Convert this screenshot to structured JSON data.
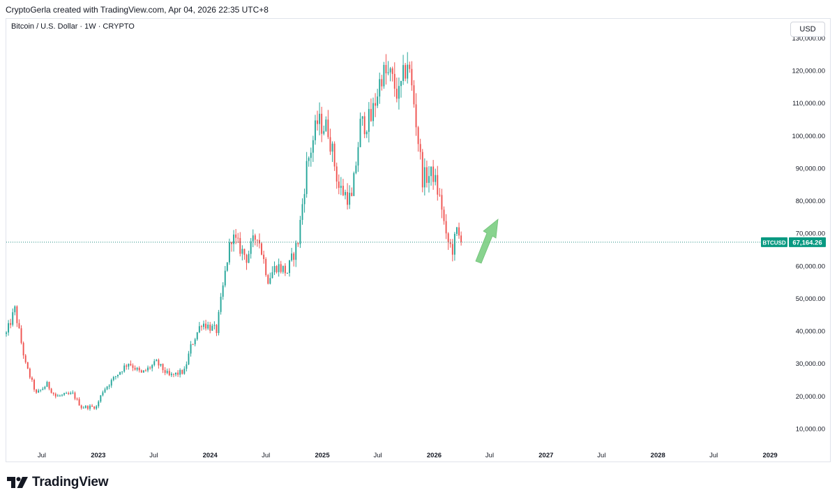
{
  "header": {
    "text": "CryptoGerla created with TradingView.com, Apr 04, 2026 22:35 UTC+8"
  },
  "symbol_title": "Bitcoin / U.S. Dollar · 1W · CRYPTO",
  "currency_button": "USD",
  "footer": {
    "brand": "TradingView"
  },
  "colors": {
    "up": "#26a69a",
    "down": "#ef5350",
    "arrow": "#7ccf82",
    "price_line": "#1d8e80",
    "price_label_bg": "#089981"
  },
  "chart_data": {
    "type": "candlestick",
    "symbol": "BTCUSD",
    "interval": "1W",
    "last_price": 67164.26,
    "last_price_label": "67,164.26",
    "symbol_label": "BTCUSD",
    "y_ticks": [
      {
        "value": 130000,
        "label": "130,000.00"
      },
      {
        "value": 120000,
        "label": "120,000.00"
      },
      {
        "value": 110000,
        "label": "110,000.00"
      },
      {
        "value": 100000,
        "label": "100,000.00"
      },
      {
        "value": 90000,
        "label": "90,000.00"
      },
      {
        "value": 80000,
        "label": "80,000.00"
      },
      {
        "value": 70000,
        "label": "70,000.00"
      },
      {
        "value": 60000,
        "label": "60,000.00"
      },
      {
        "value": 50000,
        "label": "50,000.00"
      },
      {
        "value": 40000,
        "label": "40,000.00"
      },
      {
        "value": 30000,
        "label": "30,000.00"
      },
      {
        "value": 20000,
        "label": "20,000.00"
      },
      {
        "value": 10000,
        "label": "10,000.00"
      }
    ],
    "x_ticks": [
      {
        "date": "2022-07-01",
        "label": "Jul",
        "bold": false
      },
      {
        "date": "2023-01-01",
        "label": "2023",
        "bold": true
      },
      {
        "date": "2023-07-01",
        "label": "Jul",
        "bold": false
      },
      {
        "date": "2024-01-01",
        "label": "2024",
        "bold": true
      },
      {
        "date": "2024-07-01",
        "label": "Jul",
        "bold": false
      },
      {
        "date": "2025-01-01",
        "label": "2025",
        "bold": true
      },
      {
        "date": "2025-07-01",
        "label": "Jul",
        "bold": false
      },
      {
        "date": "2026-01-01",
        "label": "2026",
        "bold": true
      },
      {
        "date": "2026-07-01",
        "label": "Jul",
        "bold": false
      },
      {
        "date": "2027-01-01",
        "label": "2027",
        "bold": true
      },
      {
        "date": "2027-07-01",
        "label": "Jul",
        "bold": false
      },
      {
        "date": "2028-01-01",
        "label": "2028",
        "bold": true
      },
      {
        "date": "2028-07-01",
        "label": "Jul",
        "bold": false
      },
      {
        "date": "2029-01-01",
        "label": "2029",
        "bold": true
      }
    ],
    "x_range": [
      "2022-03-07",
      "2029-03-01"
    ],
    "y_range": [
      0,
      133000
    ],
    "close_path": [
      {
        "date": "2022-03-07",
        "close": 39000
      },
      {
        "date": "2022-04-04",
        "close": 46500
      },
      {
        "date": "2022-05-09",
        "close": 29500
      },
      {
        "date": "2022-06-13",
        "close": 20500
      },
      {
        "date": "2022-07-18",
        "close": 23500
      },
      {
        "date": "2022-08-15",
        "close": 19800
      },
      {
        "date": "2022-10-10",
        "close": 20500
      },
      {
        "date": "2022-11-07",
        "close": 16500
      },
      {
        "date": "2022-12-26",
        "close": 16600
      },
      {
        "date": "2023-01-16",
        "close": 21500
      },
      {
        "date": "2023-03-13",
        "close": 27500
      },
      {
        "date": "2023-04-10",
        "close": 30200
      },
      {
        "date": "2023-05-22",
        "close": 26800
      },
      {
        "date": "2023-07-10",
        "close": 30200
      },
      {
        "date": "2023-08-21",
        "close": 26000
      },
      {
        "date": "2023-10-09",
        "close": 27500
      },
      {
        "date": "2023-10-30",
        "close": 35000
      },
      {
        "date": "2023-12-04",
        "close": 42500
      },
      {
        "date": "2024-01-22",
        "close": 40000
      },
      {
        "date": "2024-02-26",
        "close": 62000
      },
      {
        "date": "2024-03-11",
        "close": 69000
      },
      {
        "date": "2024-04-29",
        "close": 62500
      },
      {
        "date": "2024-06-03",
        "close": 70000
      },
      {
        "date": "2024-07-08",
        "close": 56000
      },
      {
        "date": "2024-08-05",
        "close": 60000
      },
      {
        "date": "2024-09-09",
        "close": 58000
      },
      {
        "date": "2024-10-14",
        "close": 67500
      },
      {
        "date": "2024-11-11",
        "close": 90500
      },
      {
        "date": "2024-12-16",
        "close": 104000
      },
      {
        "date": "2025-01-20",
        "close": 102000
      },
      {
        "date": "2025-02-24",
        "close": 84000
      },
      {
        "date": "2025-04-07",
        "close": 80000
      },
      {
        "date": "2025-05-05",
        "close": 103000
      },
      {
        "date": "2025-06-09",
        "close": 105000
      },
      {
        "date": "2025-07-14",
        "close": 119000
      },
      {
        "date": "2025-08-11",
        "close": 118000
      },
      {
        "date": "2025-09-08",
        "close": 112000
      },
      {
        "date": "2025-10-06",
        "close": 123000
      },
      {
        "date": "2025-10-27",
        "close": 110000
      },
      {
        "date": "2025-11-24",
        "close": 87000
      },
      {
        "date": "2025-12-29",
        "close": 88000
      },
      {
        "date": "2026-01-26",
        "close": 78000
      },
      {
        "date": "2026-02-09",
        "close": 68000
      },
      {
        "date": "2026-03-02",
        "close": 65000
      },
      {
        "date": "2026-03-16",
        "close": 70500
      },
      {
        "date": "2026-03-30",
        "close": 67164
      }
    ],
    "annotation": "up-arrow"
  }
}
